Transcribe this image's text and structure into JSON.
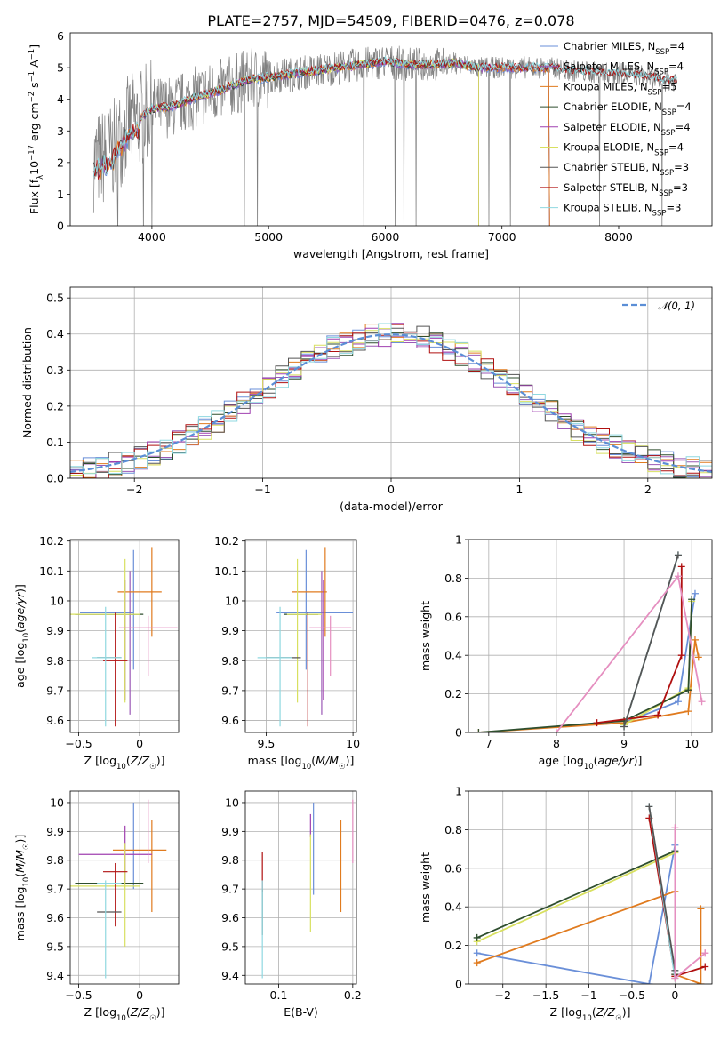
{
  "page_title": "PLATE=2757, MJD=54509, FIBERID=0476, z=0.078",
  "colors": {
    "Chabrier MILES": "#6a8fd8",
    "Salpeter MILES": "#9b59b6",
    "Kroupa MILES": "#e07b1f",
    "Chabrier ELODIE": "#2e4e2e",
    "Salpeter ELODIE": "#a040b0",
    "Kroupa ELODIE": "#d8e060",
    "Chabrier STELIB": "#555555",
    "Salpeter STELIB": "#b01010",
    "Kroupa STELIB": "#8fd8e0",
    "data": "#808080",
    "normal": "#5b8ed6"
  },
  "chart_data": [
    {
      "id": "spectrum",
      "type": "line",
      "title": "PLATE=2757, MJD=54509, FIBERID=0476, z=0.078",
      "xlabel": "wavelength [Angstrom, rest frame]",
      "ylabel": "Flux [f_λ 10^-17 erg cm^-2 s^-1 A^-1]",
      "xlim": [
        3300,
        8800
      ],
      "ylim": [
        0,
        6.1
      ],
      "xticks": [
        4000,
        5000,
        6000,
        7000,
        8000
      ],
      "yticks": [
        0,
        1,
        2,
        3,
        4,
        5,
        6
      ],
      "grid": false,
      "legend_position": "right",
      "legend": [
        {
          "label": "Chabrier MILES, N",
          "sub": "SSP",
          "tail": "=4"
        },
        {
          "label": "Salpeter MILES, N",
          "sub": "SSP",
          "tail": "=4"
        },
        {
          "label": "Kroupa MILES, N",
          "sub": "SSP",
          "tail": "=5"
        },
        {
          "label": "Chabrier ELODIE, N",
          "sub": "SSP",
          "tail": "=4"
        },
        {
          "label": "Salpeter ELODIE, N",
          "sub": "SSP",
          "tail": "=4"
        },
        {
          "label": "Kroupa ELODIE, N",
          "sub": "SSP",
          "tail": "=4"
        },
        {
          "label": "Chabrier STELIB, N",
          "sub": "SSP",
          "tail": "=3"
        },
        {
          "label": "Salpeter STELIB, N",
          "sub": "SSP",
          "tail": "=3"
        },
        {
          "label": "Kroupa STELIB, N",
          "sub": "SSP",
          "tail": "=3"
        }
      ],
      "continuum": [
        [
          3500,
          2.0
        ],
        [
          3650,
          2.3
        ],
        [
          3800,
          3.2
        ],
        [
          3900,
          3.4
        ],
        [
          4000,
          3.7
        ],
        [
          4200,
          3.8
        ],
        [
          4400,
          4.1
        ],
        [
          4600,
          4.3
        ],
        [
          4800,
          4.6
        ],
        [
          5000,
          4.7
        ],
        [
          5200,
          4.8
        ],
        [
          5400,
          4.9
        ],
        [
          5600,
          5.0
        ],
        [
          5800,
          5.1
        ],
        [
          6000,
          5.2
        ],
        [
          6200,
          5.1
        ],
        [
          6400,
          5.1
        ],
        [
          6600,
          5.15
        ],
        [
          6800,
          5.0
        ],
        [
          7000,
          5.0
        ],
        [
          7200,
          5.0
        ],
        [
          7400,
          5.0
        ],
        [
          7600,
          4.9
        ],
        [
          7800,
          4.85
        ],
        [
          8000,
          4.8
        ],
        [
          8200,
          4.75
        ],
        [
          8400,
          4.6
        ],
        [
          8500,
          4.6
        ]
      ]
    },
    {
      "id": "residuals",
      "type": "line",
      "xlabel": "(data-model)/error",
      "ylabel": "Normed distribution",
      "xlim": [
        -2.5,
        2.5
      ],
      "ylim": [
        0,
        0.53
      ],
      "xticks": [
        -2,
        -1,
        0,
        1,
        2
      ],
      "yticks": [
        0.0,
        0.1,
        0.2,
        0.3,
        0.4,
        0.5
      ],
      "grid": true,
      "legend_position": "top-right",
      "normal_label": "𝒩(0, 1)",
      "hist_bin_width": 0.1
    },
    {
      "id": "age-vs-Z",
      "type": "scatter",
      "xlabel": "Z [log10(Z/Z☉)]",
      "ylabel": "age [log10(age/yr)]",
      "xlim": [
        -0.57,
        0.32
      ],
      "ylim": [
        9.56,
        10.205
      ],
      "xticks": [
        -0.5,
        0.0
      ],
      "yticks": [
        9.6,
        9.7,
        9.8,
        9.9,
        10.0,
        10.1,
        10.2
      ],
      "grid": true,
      "errorbars": [
        {
          "c": "Chabrier MILES",
          "x": -0.27,
          "xe": 0.22,
          "y": 9.96,
          "ye": 0.0
        },
        {
          "c": "Chabrier MILES",
          "x": -0.05,
          "xe": 0.0,
          "y": 9.97,
          "ye": 0.2
        },
        {
          "c": "Salpeter MILES",
          "x": -0.08,
          "xe": 0.0,
          "y": 9.86,
          "ye": 0.24
        },
        {
          "c": "Kroupa MILES",
          "x": 0.0,
          "xe": 0.18,
          "y": 10.03,
          "ye": 0.0
        },
        {
          "c": "Kroupa MILES",
          "x": 0.1,
          "xe": 0.0,
          "y": 10.03,
          "ye": 0.15
        },
        {
          "c": "Chabrier ELODIE",
          "x": -0.25,
          "xe": 0.28,
          "y": 9.955,
          "ye": 0.0
        },
        {
          "c": "Salpeter ELODIE",
          "x": -0.12,
          "xe": 0.0,
          "y": 9.87,
          "ye": 0.2
        },
        {
          "c": "Kroupa ELODIE",
          "x": -0.12,
          "xe": 0.0,
          "y": 9.9,
          "ye": 0.24
        },
        {
          "c": "Kroupa ELODIE",
          "x": -0.3,
          "xe": 0.3,
          "y": 9.955,
          "ye": 0.0
        },
        {
          "c": "Chabrier STELIB",
          "x": -0.25,
          "xe": 0.1,
          "y": 9.81,
          "ye": 0.0
        },
        {
          "c": "Salpeter STELIB",
          "x": -0.2,
          "xe": 0.1,
          "y": 9.8,
          "ye": 0.0
        },
        {
          "c": "Salpeter STELIB",
          "x": -0.2,
          "xe": 0.0,
          "y": 9.77,
          "ye": 0.19
        },
        {
          "c": "Kroupa STELIB",
          "x": -0.28,
          "xe": 0.0,
          "y": 9.78,
          "ye": 0.2
        },
        {
          "c": "Kroupa STELIB",
          "x": -0.27,
          "xe": 0.12,
          "y": 9.81,
          "ye": 0.0
        },
        {
          "c": "pink",
          "x": 0.07,
          "xe": 0.24,
          "y": 9.91,
          "ye": 0.0
        },
        {
          "c": "pink",
          "x": 0.07,
          "xe": 0.0,
          "y": 9.85,
          "ye": 0.1
        }
      ]
    },
    {
      "id": "age-vs-mass",
      "type": "scatter",
      "xlabel": "mass [log10(M/M☉)]",
      "xlim": [
        9.38,
        10.02
      ],
      "ylim": [
        9.56,
        10.205
      ],
      "xticks": [
        9.5,
        10.0
      ],
      "yticks": [
        9.6,
        9.7,
        9.8,
        9.9,
        10.0,
        10.1,
        10.2
      ],
      "grid": true,
      "errorbars": [
        {
          "c": "Chabrier MILES",
          "x": 9.73,
          "xe": 0.0,
          "y": 9.97,
          "ye": 0.2
        },
        {
          "c": "Chabrier MILES",
          "x": 9.78,
          "xe": 0.22,
          "y": 9.96,
          "ye": 0.0
        },
        {
          "c": "Salpeter MILES",
          "x": 9.82,
          "xe": 0.0,
          "y": 9.86,
          "ye": 0.24
        },
        {
          "c": "Kroupa MILES",
          "x": 9.75,
          "xe": 0.1,
          "y": 10.03,
          "ye": 0.0
        },
        {
          "c": "Kroupa MILES",
          "x": 9.84,
          "xe": 0.0,
          "y": 10.03,
          "ye": 0.15
        },
        {
          "c": "Chabrier ELODIE",
          "x": 9.7,
          "xe": 0.1,
          "y": 9.955,
          "ye": 0.0
        },
        {
          "c": "Kroupa ELODIE",
          "x": 9.68,
          "xe": 0.0,
          "y": 9.9,
          "ye": 0.24
        },
        {
          "c": "Kroupa ELODIE",
          "x": 9.72,
          "xe": 0.1,
          "y": 9.955,
          "ye": 0.0
        },
        {
          "c": "Salpeter ELODIE",
          "x": 9.83,
          "xe": 0.0,
          "y": 9.87,
          "ye": 0.2
        },
        {
          "c": "Chabrier STELIB",
          "x": 9.6,
          "xe": 0.1,
          "y": 9.81,
          "ye": 0.0
        },
        {
          "c": "Salpeter STELIB",
          "x": 9.74,
          "xe": 0.0,
          "y": 9.77,
          "ye": 0.19
        },
        {
          "c": "Kroupa STELIB",
          "x": 9.58,
          "xe": 0.0,
          "y": 9.78,
          "ye": 0.2
        },
        {
          "c": "Kroupa STELIB",
          "x": 9.55,
          "xe": 0.1,
          "y": 9.81,
          "ye": 0.0
        },
        {
          "c": "pink",
          "x": 9.87,
          "xe": 0.12,
          "y": 9.91,
          "ye": 0.0
        },
        {
          "c": "pink",
          "x": 9.87,
          "xe": 0.0,
          "y": 9.85,
          "ye": 0.1
        }
      ]
    },
    {
      "id": "massweight-vs-age",
      "type": "line",
      "xlabel": "age  [log10(age/yr)]",
      "ylabel": "mass weight",
      "xlim": [
        6.7,
        10.3
      ],
      "ylim": [
        0.0,
        1.0
      ],
      "xticks": [
        7,
        8,
        9,
        10
      ],
      "yticks": [
        0.0,
        0.2,
        0.4,
        0.6,
        0.8,
        1.0
      ],
      "grid": true,
      "series": [
        {
          "c": "Chabrier MILES",
          "x": [
            9.0,
            9.8,
            10.05
          ],
          "y": [
            0.05,
            0.16,
            0.72
          ]
        },
        {
          "c": "Kroupa MILES",
          "x": [
            6.85,
            9.0,
            9.95,
            10.05,
            10.1
          ],
          "y": [
            0.0,
            0.05,
            0.11,
            0.48,
            0.39
          ]
        },
        {
          "c": "Kroupa ELODIE",
          "x": [
            9.0,
            9.95,
            10.0
          ],
          "y": [
            0.04,
            0.23,
            0.68
          ]
        },
        {
          "c": "Chabrier ELODIE",
          "x": [
            6.85,
            9.0,
            9.95,
            10.0
          ],
          "y": [
            0.0,
            0.06,
            0.22,
            0.69
          ]
        },
        {
          "c": "Salpeter STELIB",
          "x": [
            8.6,
            9.5,
            9.85,
            9.85
          ],
          "y": [
            0.05,
            0.09,
            0.4,
            0.86
          ]
        },
        {
          "c": "Kroupa STELIB",
          "x": [
            9.0,
            9.8
          ],
          "y": [
            0.03,
            0.92
          ]
        },
        {
          "c": "Chabrier STELIB",
          "x": [
            9.0,
            9.8
          ],
          "y": [
            0.03,
            0.92
          ]
        },
        {
          "c": "pink",
          "x": [
            8.0,
            9.8,
            10.15
          ],
          "y": [
            0.0,
            0.81,
            0.16
          ]
        }
      ]
    },
    {
      "id": "mass-vs-Z",
      "type": "scatter",
      "xlabel": "Z [log10(Z/Z☉)]",
      "ylabel": "mass [log10(M/M☉)]",
      "xlim": [
        -0.57,
        0.32
      ],
      "ylim": [
        9.37,
        10.04
      ],
      "xticks": [
        -0.5,
        0.0
      ],
      "yticks": [
        9.4,
        9.5,
        9.6,
        9.7,
        9.8,
        9.9,
        10.0
      ],
      "grid": true,
      "errorbars": [
        {
          "c": "Chabrier MILES",
          "x": -0.05,
          "xe": 0.0,
          "y": 9.85,
          "ye": 0.15
        },
        {
          "c": "Chabrier MILES",
          "x": -0.25,
          "xe": 0.22,
          "y": 9.72,
          "ye": 0.0
        },
        {
          "c": "Kroupa MILES",
          "x": 0.0,
          "xe": 0.22,
          "y": 9.835,
          "ye": 0.0
        },
        {
          "c": "Kroupa MILES",
          "x": 0.1,
          "xe": 0.0,
          "y": 9.78,
          "ye": 0.16
        },
        {
          "c": "Salpeter ELODIE",
          "x": -0.2,
          "xe": 0.3,
          "y": 9.82,
          "ye": 0.0
        },
        {
          "c": "Salpeter ELODIE",
          "x": -0.12,
          "xe": 0.0,
          "y": 9.82,
          "ye": 0.1
        },
        {
          "c": "Chabrier ELODIE",
          "x": -0.25,
          "xe": 0.28,
          "y": 9.72,
          "ye": 0.0
        },
        {
          "c": "Kroupa ELODIE",
          "x": -0.12,
          "xe": 0.0,
          "y": 9.68,
          "ye": 0.18
        },
        {
          "c": "Kroupa ELODIE",
          "x": -0.3,
          "xe": 0.3,
          "y": 9.71,
          "ye": 0.0
        },
        {
          "c": "Salpeter STELIB",
          "x": -0.2,
          "xe": 0.1,
          "y": 9.76,
          "ye": 0.0
        },
        {
          "c": "Salpeter STELIB",
          "x": -0.2,
          "xe": 0.0,
          "y": 9.68,
          "ye": 0.11
        },
        {
          "c": "Chabrier STELIB",
          "x": -0.25,
          "xe": 0.1,
          "y": 9.62,
          "ye": 0.0
        },
        {
          "c": "Kroupa STELIB",
          "x": -0.28,
          "xe": 0.0,
          "y": 9.56,
          "ye": 0.17
        },
        {
          "c": "Kroupa STELIB",
          "x": -0.25,
          "xe": 0.1,
          "y": 9.72,
          "ye": 0.0
        },
        {
          "c": "pink",
          "x": 0.07,
          "xe": 0.0,
          "y": 9.9,
          "ye": 0.11
        }
      ]
    },
    {
      "id": "mass-vs-EBV",
      "type": "scatter",
      "xlabel": "E(B-V)",
      "xlim": [
        0.055,
        0.205
      ],
      "ylim": [
        9.37,
        10.04
      ],
      "xticks": [
        0.1,
        0.2
      ],
      "yticks": [
        9.4,
        9.5,
        9.6,
        9.7,
        9.8,
        9.9,
        10.0
      ],
      "grid": true,
      "errorbars": [
        {
          "c": "Salpeter STELIB",
          "x": 0.078,
          "xe": 0.0,
          "y": 9.76,
          "ye": 0.07
        },
        {
          "c": "Chabrier STELIB",
          "x": 0.078,
          "xe": 0.0,
          "y": 9.62,
          "ye": 0.08
        },
        {
          "c": "Kroupa STELIB",
          "x": 0.078,
          "xe": 0.0,
          "y": 9.56,
          "ye": 0.17
        },
        {
          "c": "Salpeter ELODIE",
          "x": 0.143,
          "xe": 0.0,
          "y": 9.92,
          "ye": 0.04
        },
        {
          "c": "Kroupa ELODIE",
          "x": 0.143,
          "xe": 0.0,
          "y": 9.72,
          "ye": 0.17
        },
        {
          "c": "Chabrier MILES",
          "x": 0.147,
          "xe": 0.0,
          "y": 9.84,
          "ye": 0.16
        },
        {
          "c": "Kroupa MILES",
          "x": 0.184,
          "xe": 0.0,
          "y": 9.78,
          "ye": 0.16
        },
        {
          "c": "pink",
          "x": 0.2,
          "xe": 0.0,
          "y": 9.9,
          "ye": 0.11
        }
      ]
    },
    {
      "id": "massweight-vs-Z",
      "type": "line",
      "xlabel": "Z [log10(Z/Z☉)]",
      "ylabel": "mass weight",
      "xlim": [
        -2.4,
        0.43
      ],
      "ylim": [
        0.0,
        1.0
      ],
      "xticks": [
        -2.0,
        -1.5,
        -1.0,
        -0.5,
        0.0
      ],
      "yticks": [
        0.0,
        0.2,
        0.4,
        0.6,
        0.8,
        1.0
      ],
      "grid": true,
      "series": [
        {
          "c": "Chabrier MILES",
          "x": [
            -2.3,
            -0.3,
            0.0,
            0.0
          ],
          "y": [
            0.16,
            0.0,
            0.72,
            0.05
          ]
        },
        {
          "c": "Kroupa MILES",
          "x": [
            -2.3,
            0.0,
            0.0,
            0.3,
            0.3
          ],
          "y": [
            0.11,
            0.48,
            0.05,
            0.0,
            0.39
          ]
        },
        {
          "c": "Kroupa ELODIE",
          "x": [
            -2.3,
            0.0,
            0.0
          ],
          "y": [
            0.22,
            0.68,
            0.03
          ]
        },
        {
          "c": "Chabrier ELODIE",
          "x": [
            -2.3,
            0.0,
            0.0
          ],
          "y": [
            0.24,
            0.69,
            0.05
          ]
        },
        {
          "c": "Salpeter STELIB",
          "x": [
            -0.3,
            0.0,
            0.35
          ],
          "y": [
            0.86,
            0.04,
            0.09
          ]
        },
        {
          "c": "Kroupa STELIB",
          "x": [
            -0.3,
            0.0
          ],
          "y": [
            0.92,
            0.03
          ]
        },
        {
          "c": "Chabrier STELIB",
          "x": [
            -0.3,
            0.0
          ],
          "y": [
            0.92,
            0.07
          ]
        },
        {
          "c": "pink",
          "x": [
            0.0,
            0.0,
            0.35,
            0.35
          ],
          "y": [
            0.81,
            0.03,
            0.16,
            0.16
          ]
        }
      ]
    }
  ],
  "extra_colors": {
    "pink": "#e58fc0"
  }
}
